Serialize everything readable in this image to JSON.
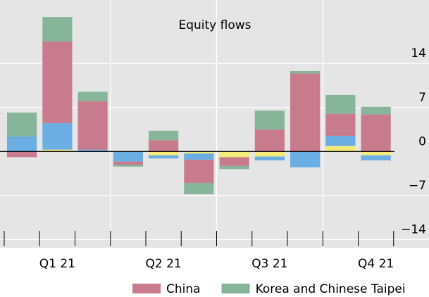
{
  "chart_data": {
    "type": "bar",
    "stacked": true,
    "annotation": "Equity flows",
    "categories": [
      null,
      "Q1 21",
      null,
      null,
      "Q2 21",
      null,
      null,
      "Q3 21",
      null,
      null,
      "Q4 21",
      null
    ],
    "series": [
      {
        "color": "#f3ec78",
        "values": [
          0,
          0.3,
          0,
          0,
          -0.6,
          -0.3,
          -0.9,
          -0.8,
          0,
          0.9,
          -0.6,
          null
        ]
      },
      {
        "color": "#6aaee3",
        "values": [
          2.4,
          4.2,
          0.3,
          -1.6,
          -0.5,
          -1,
          0,
          -0.6,
          -2.5,
          1.6,
          -0.8,
          null
        ]
      },
      {
        "name": "China",
        "color": "#c97b8e",
        "values": [
          -0.9,
          13,
          7.7,
          -0.5,
          1.8,
          -3.7,
          -1.4,
          3.5,
          12.4,
          3.5,
          5.9,
          null
        ]
      },
      {
        "name": "Korea and Chinese Taipei",
        "color": "#86b59a",
        "values": [
          3.8,
          3.9,
          1.5,
          -0.3,
          1.5,
          -1.8,
          -0.5,
          3,
          0.4,
          3,
          1.2,
          null
        ]
      }
    ],
    "ylim": [
      -15.3,
      24.1
    ],
    "yticks": [
      {
        "value": -14,
        "label": "−14"
      },
      {
        "value": -7,
        "label": "−7"
      },
      0,
      7,
      14
    ],
    "grid": true
  }
}
